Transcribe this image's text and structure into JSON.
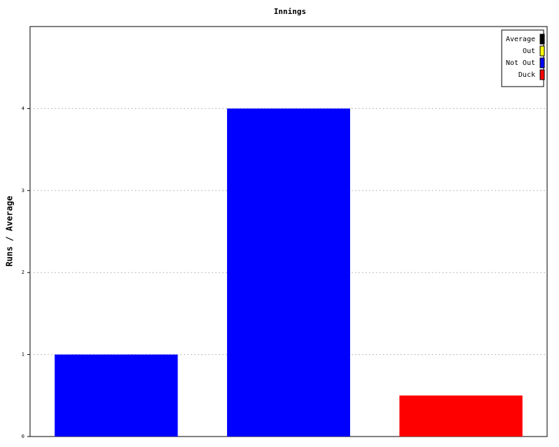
{
  "chart_data": {
    "type": "bar",
    "title": "Innings",
    "y_label": "Runs / Average",
    "categories": [
      null,
      null,
      null
    ],
    "values": [
      1,
      4,
      0.5
    ],
    "colors": [
      "#0000ff",
      "#0000ff",
      "#ff0000"
    ],
    "ylim": [
      0,
      5
    ],
    "yticks": [
      0,
      1,
      2,
      3,
      4
    ],
    "grid": true,
    "legend_position": "upper right",
    "legend": [
      {
        "name": "Average",
        "color": "#000000"
      },
      {
        "name": "Out",
        "color": "#ffff00"
      },
      {
        "name": "Not Out",
        "color": "#0000ff"
      },
      {
        "name": "Duck",
        "color": "#ff0000"
      }
    ]
  }
}
